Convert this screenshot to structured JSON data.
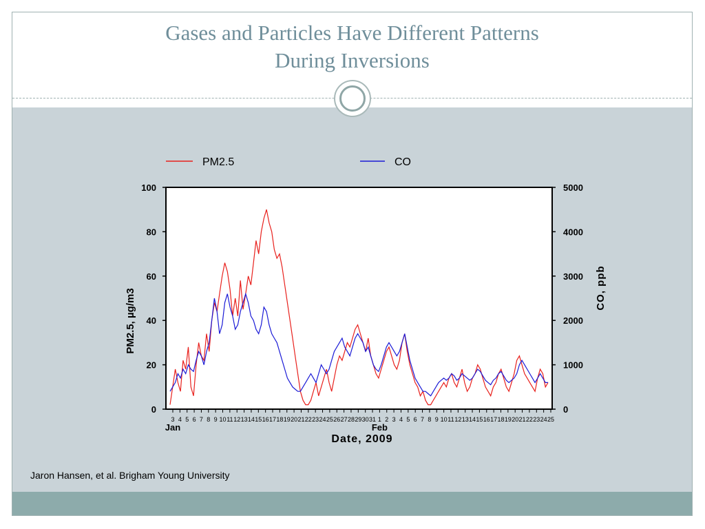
{
  "slide": {
    "title_line1": "Gases and Particles Have Different Patterns",
    "title_line2": "During Inversions",
    "citation": "Jaron Hansen, et al. Brigham Young University",
    "colors": {
      "title": "#6f8e9a",
      "content_bg": "#c9d3d8",
      "footer": "#8dabab"
    }
  },
  "chart_data": {
    "type": "line",
    "title": "",
    "xlabel": "Date, 2009",
    "ylabel_left": "PM2.5, µg/m3",
    "ylabel_right": "CO, ppb",
    "ylim_left": [
      0,
      100
    ],
    "ylim_right": [
      0,
      5000
    ],
    "yticks_left": [
      "0",
      "20",
      "40",
      "60",
      "80",
      "100"
    ],
    "yticks_right": [
      "0",
      "1000",
      "2000",
      "3000",
      "4000",
      "5000"
    ],
    "month_labels": [
      {
        "label": "Jan",
        "day_index": 0
      },
      {
        "label": "Feb",
        "day_index": 29
      }
    ],
    "day_labels": [
      "3",
      "4",
      "5",
      "6",
      "7",
      "8",
      "9",
      "10",
      "11",
      "12",
      "13",
      "14",
      "15",
      "16",
      "17",
      "18",
      "19",
      "20",
      "21",
      "22",
      "23",
      "24",
      "25",
      "26",
      "27",
      "28",
      "29",
      "30",
      "31",
      "1",
      "2",
      "3",
      "4",
      "5",
      "6",
      "7",
      "8",
      "9",
      "10",
      "11",
      "12",
      "13",
      "14",
      "15",
      "16",
      "17",
      "18",
      "19",
      "20",
      "21",
      "22",
      "23",
      "24",
      "25"
    ],
    "legend": {
      "placement": "top"
    },
    "grid": false,
    "series": [
      {
        "name": "PM2.5",
        "axis": "left",
        "color": "#e8201c",
        "values": [
          2,
          10,
          18,
          12,
          8,
          22,
          18,
          28,
          10,
          6,
          20,
          30,
          24,
          22,
          34,
          26,
          40,
          48,
          44,
          52,
          60,
          66,
          62,
          54,
          42,
          50,
          42,
          58,
          45,
          52,
          60,
          56,
          66,
          76,
          70,
          80,
          86,
          90,
          84,
          80,
          72,
          68,
          70,
          64,
          56,
          48,
          40,
          32,
          24,
          16,
          8,
          4,
          2,
          2,
          4,
          8,
          12,
          6,
          10,
          14,
          18,
          12,
          8,
          14,
          20,
          24,
          22,
          26,
          30,
          28,
          32,
          36,
          38,
          34,
          30,
          26,
          32,
          24,
          20,
          16,
          14,
          18,
          22,
          26,
          28,
          24,
          20,
          18,
          22,
          30,
          34,
          26,
          20,
          16,
          12,
          10,
          6,
          8,
          4,
          2,
          2,
          4,
          6,
          8,
          10,
          12,
          10,
          14,
          16,
          12,
          10,
          14,
          18,
          12,
          8,
          10,
          14,
          16,
          20,
          18,
          14,
          10,
          8,
          6,
          10,
          12,
          16,
          18,
          14,
          10,
          8,
          12,
          16,
          22,
          24,
          20,
          16,
          14,
          12,
          10,
          8,
          14,
          18,
          16,
          10,
          12
        ]
      },
      {
        "name": "CO",
        "axis": "right",
        "color": "#1a1ad6",
        "values": [
          400,
          500,
          600,
          800,
          700,
          900,
          800,
          1000,
          900,
          850,
          1100,
          1300,
          1200,
          1000,
          1300,
          1500,
          2000,
          2500,
          2200,
          1700,
          1900,
          2400,
          2600,
          2300,
          2100,
          1800,
          1900,
          2200,
          2400,
          2600,
          2400,
          2100,
          2000,
          1800,
          1700,
          1900,
          2300,
          2200,
          1900,
          1700,
          1600,
          1500,
          1300,
          1100,
          900,
          700,
          600,
          500,
          450,
          400,
          400,
          500,
          600,
          700,
          800,
          700,
          600,
          800,
          1000,
          900,
          800,
          900,
          1100,
          1300,
          1400,
          1500,
          1600,
          1400,
          1300,
          1200,
          1400,
          1600,
          1700,
          1600,
          1500,
          1300,
          1400,
          1200,
          1000,
          900,
          850,
          1000,
          1200,
          1400,
          1500,
          1400,
          1300,
          1200,
          1300,
          1500,
          1700,
          1400,
          1100,
          900,
          700,
          600,
          500,
          400,
          400,
          350,
          300,
          400,
          500,
          600,
          650,
          700,
          650,
          700,
          800,
          750,
          650,
          700,
          800,
          750,
          700,
          650,
          700,
          800,
          900,
          850,
          750,
          650,
          600,
          550,
          650,
          700,
          800,
          850,
          750,
          650,
          600,
          650,
          700,
          800,
          1000,
          1100,
          1000,
          900,
          800,
          700,
          600,
          700,
          800,
          700,
          600,
          600
        ]
      }
    ],
    "annotations": []
  }
}
